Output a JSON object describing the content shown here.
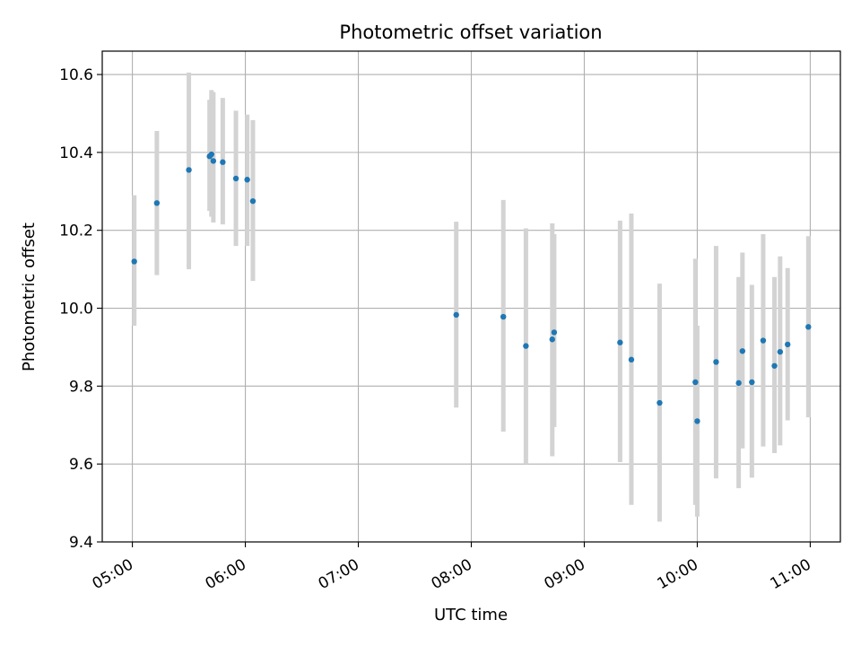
{
  "chart_data": {
    "type": "scatter",
    "title": "Photometric offset variation",
    "xlabel": "UTC time",
    "ylabel": "Photometric offset",
    "x_ticks": [
      "05:00",
      "06:00",
      "07:00",
      "08:00",
      "09:00",
      "10:00",
      "11:00"
    ],
    "y_ticks": [
      "9.4",
      "9.6",
      "9.8",
      "10.0",
      "10.2",
      "10.4",
      "10.6"
    ],
    "xlim": [
      "04:44",
      "11:16"
    ],
    "ylim": [
      9.4,
      10.66
    ],
    "grid": true,
    "point_color": "#1f77b4",
    "errorbar_color": "#d3d3d3",
    "points": [
      {
        "t": "05:01",
        "y": 10.12,
        "lo": 9.955,
        "hi": 10.29
      },
      {
        "t": "05:13",
        "y": 10.27,
        "lo": 10.085,
        "hi": 10.455
      },
      {
        "t": "05:30",
        "y": 10.355,
        "lo": 10.1,
        "hi": 10.605
      },
      {
        "t": "05:41",
        "y": 10.39,
        "lo": 10.25,
        "hi": 10.535
      },
      {
        "t": "05:42",
        "y": 10.395,
        "lo": 10.235,
        "hi": 10.56
      },
      {
        "t": "05:43",
        "y": 10.378,
        "lo": 10.22,
        "hi": 10.555
      },
      {
        "t": "05:48",
        "y": 10.375,
        "lo": 10.215,
        "hi": 10.54
      },
      {
        "t": "05:55",
        "y": 10.333,
        "lo": 10.16,
        "hi": 10.507
      },
      {
        "t": "06:01",
        "y": 10.33,
        "lo": 10.16,
        "hi": 10.497
      },
      {
        "t": "06:04",
        "y": 10.275,
        "lo": 10.07,
        "hi": 10.483
      },
      {
        "t": "07:52",
        "y": 9.983,
        "lo": 9.745,
        "hi": 10.222
      },
      {
        "t": "08:17",
        "y": 9.978,
        "lo": 9.683,
        "hi": 10.278
      },
      {
        "t": "08:29",
        "y": 9.903,
        "lo": 9.6,
        "hi": 10.205
      },
      {
        "t": "08:43",
        "y": 9.92,
        "lo": 9.62,
        "hi": 10.218
      },
      {
        "t": "08:44",
        "y": 9.938,
        "lo": 9.695,
        "hi": 10.19
      },
      {
        "t": "09:19",
        "y": 9.912,
        "lo": 9.605,
        "hi": 10.225
      },
      {
        "t": "09:25",
        "y": 9.868,
        "lo": 9.495,
        "hi": 10.243
      },
      {
        "t": "09:40",
        "y": 9.757,
        "lo": 9.452,
        "hi": 10.063
      },
      {
        "t": "09:59",
        "y": 9.81,
        "lo": 9.495,
        "hi": 10.127
      },
      {
        "t": "10:00",
        "y": 9.71,
        "lo": 9.465,
        "hi": 9.955
      },
      {
        "t": "10:10",
        "y": 9.862,
        "lo": 9.563,
        "hi": 10.16
      },
      {
        "t": "10:22",
        "y": 9.808,
        "lo": 9.538,
        "hi": 10.08
      },
      {
        "t": "10:24",
        "y": 9.89,
        "lo": 9.64,
        "hi": 10.143
      },
      {
        "t": "10:29",
        "y": 9.81,
        "lo": 9.565,
        "hi": 10.06
      },
      {
        "t": "10:35",
        "y": 9.917,
        "lo": 9.645,
        "hi": 10.19
      },
      {
        "t": "10:41",
        "y": 9.852,
        "lo": 9.628,
        "hi": 10.08
      },
      {
        "t": "10:44",
        "y": 9.888,
        "lo": 9.648,
        "hi": 10.133
      },
      {
        "t": "10:48",
        "y": 9.907,
        "lo": 9.712,
        "hi": 10.103
      },
      {
        "t": "10:59",
        "y": 9.952,
        "lo": 9.72,
        "hi": 10.185
      }
    ]
  }
}
